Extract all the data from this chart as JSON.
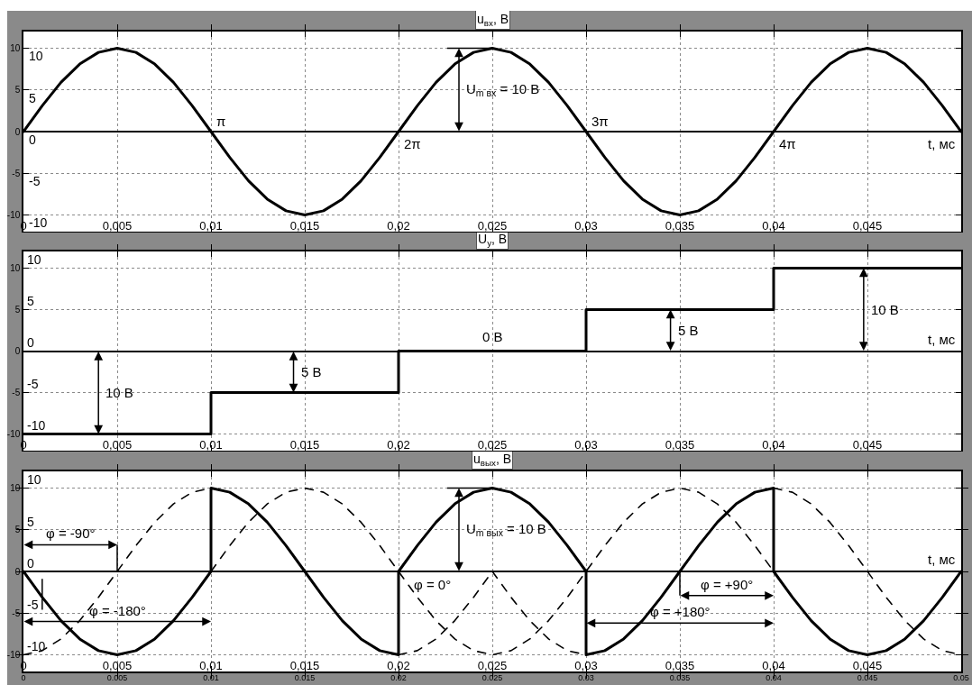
{
  "chart_data": [
    {
      "type": "line",
      "title": "u$_{вх}$, В",
      "xlabel": "t, мс",
      "x": [
        0,
        0.001,
        0.002,
        0.003,
        0.004,
        0.005,
        0.006,
        0.007,
        0.008,
        0.009,
        0.01,
        0.011,
        0.012,
        0.013,
        0.014,
        0.015,
        0.016,
        0.017,
        0.018,
        0.019,
        0.02,
        0.021,
        0.022,
        0.023,
        0.024,
        0.025,
        0.026,
        0.027,
        0.028,
        0.029,
        0.03,
        0.031,
        0.032,
        0.033,
        0.034,
        0.035,
        0.036,
        0.037,
        0.038,
        0.039,
        0.04,
        0.041,
        0.042,
        0.043,
        0.044,
        0.045,
        0.046,
        0.047,
        0.048,
        0.049,
        0.05
      ],
      "series": [
        {
          "color": "#000000",
          "values": [
            0,
            3.1,
            5.9,
            8.1,
            9.5,
            10,
            9.5,
            8.1,
            5.9,
            3.1,
            0,
            -3.1,
            -5.9,
            -8.1,
            -9.5,
            -10,
            -9.5,
            -8.1,
            -5.9,
            -3.1,
            0,
            3.1,
            5.9,
            8.1,
            9.5,
            10,
            9.5,
            8.1,
            5.9,
            3.1,
            0,
            -3.1,
            -5.9,
            -8.1,
            -9.5,
            -10,
            -9.5,
            -8.1,
            -5.9,
            -3.1,
            0,
            3.1,
            5.9,
            8.1,
            9.5,
            10,
            9.5,
            8.1,
            5.9,
            3.1,
            0
          ]
        }
      ],
      "xlim": [
        0,
        0.05
      ],
      "xticks": [
        {
          "value": 0,
          "label": "0"
        },
        {
          "value": 0.005,
          "label": "0,005"
        },
        {
          "value": 0.01,
          "label": "0,01"
        },
        {
          "value": 0.015,
          "label": "0,015"
        },
        {
          "value": 0.02,
          "label": "0,02"
        },
        {
          "value": 0.025,
          "label": "0,025"
        },
        {
          "value": 0.03,
          "label": "0,03"
        },
        {
          "value": 0.035,
          "label": "0,035"
        },
        {
          "value": 0.04,
          "label": "0,04"
        },
        {
          "value": 0.045,
          "label": "0,045"
        }
      ],
      "ylim": [
        -12,
        12
      ],
      "yticks": [
        -10,
        -5,
        0,
        5,
        10
      ],
      "y2lim": [
        -12,
        12
      ],
      "y2ticks": [
        -10,
        -5,
        0,
        5,
        10
      ],
      "grid": true,
      "annotations": [
        {
          "text": "π",
          "x": 0.01,
          "y": 0
        },
        {
          "text": "2π",
          "x": 0.02,
          "y": 0
        },
        {
          "text": "3π",
          "x": 0.03,
          "y": 0
        },
        {
          "text": "4π",
          "x": 0.04,
          "y": 0
        },
        {
          "text": "U$_{m вх}$ = 10 В",
          "x": 0.025,
          "y": 10
        }
      ]
    },
    {
      "type": "step",
      "title": "U$_{у}$, В",
      "xlabel": "t, мс",
      "x": [
        0,
        0.01,
        0.02,
        0.03,
        0.04,
        0.05
      ],
      "series": [
        {
          "color": "#000000",
          "values": [
            -10,
            -5,
            0,
            5,
            10,
            10
          ]
        }
      ],
      "xlim": [
        0,
        0.05
      ],
      "xticks": [
        {
          "value": 0,
          "label": "0"
        },
        {
          "value": 0.005,
          "label": "0,005"
        },
        {
          "value": 0.01,
          "label": "0,01"
        },
        {
          "value": 0.015,
          "label": "0,015"
        },
        {
          "value": 0.02,
          "label": "0,02"
        },
        {
          "value": 0.025,
          "label": "0,025"
        },
        {
          "value": 0.03,
          "label": "0,03"
        },
        {
          "value": 0.035,
          "label": "0,035"
        },
        {
          "value": 0.04,
          "label": "0,04"
        },
        {
          "value": 0.045,
          "label": "0,045"
        }
      ],
      "ylim": [
        -12,
        12
      ],
      "yticks": [
        -10,
        -5,
        0,
        5,
        10
      ],
      "y2lim": [
        -12,
        12
      ],
      "y2ticks": [
        -10,
        -5,
        0,
        5,
        10
      ],
      "grid": true,
      "annotations": [
        {
          "text": "10 В",
          "x": 0.004,
          "y": -10
        },
        {
          "text": "5 В",
          "x": 0.0144,
          "y": -5
        },
        {
          "text": "0 В",
          "x": 0.025,
          "y": 0
        },
        {
          "text": "5 В",
          "x": 0.0345,
          "y": 5
        },
        {
          "text": "10 В",
          "x": 0.0448,
          "y": 10
        }
      ]
    },
    {
      "type": "line",
      "title": "u$_{вых}$, В",
      "xlabel": "t, мс",
      "series": [
        {
          "color": "#000000",
          "x": [
            0,
            0.001,
            0.002,
            0.003,
            0.004,
            0.005,
            0.006,
            0.007,
            0.008,
            0.009,
            0.01,
            0.01,
            0.011,
            0.012,
            0.013,
            0.014,
            0.015,
            0.016,
            0.017,
            0.018,
            0.019,
            0.02,
            0.02,
            0.021,
            0.022,
            0.023,
            0.024,
            0.025,
            0.026,
            0.027,
            0.028,
            0.029,
            0.03,
            0.03,
            0.031,
            0.032,
            0.033,
            0.034,
            0.035,
            0.036,
            0.037,
            0.038,
            0.039,
            0.04,
            0.04,
            0.041,
            0.042,
            0.043,
            0.044,
            0.045,
            0.046,
            0.047,
            0.048,
            0.049,
            0.05
          ],
          "values": [
            0,
            -3.1,
            -5.9,
            -8.1,
            -9.5,
            -10,
            -9.5,
            -8.1,
            -5.9,
            -3.1,
            0,
            10,
            9.5,
            8.1,
            5.9,
            3.1,
            0,
            -3.1,
            -5.9,
            -8.1,
            -9.5,
            -10,
            0,
            3.1,
            5.9,
            8.1,
            9.5,
            10,
            9.5,
            8.1,
            5.9,
            3.1,
            0,
            -10,
            -9.5,
            -8.1,
            -5.9,
            -3.1,
            0,
            3.1,
            5.9,
            8.1,
            9.5,
            10,
            0,
            -3.1,
            -5.9,
            -8.1,
            -9.5,
            -10,
            -9.5,
            -8.1,
            -5.9,
            -3.1,
            0
          ]
        },
        {
          "color": "#000000",
          "line_style": "dashed",
          "x": [
            0,
            0.001,
            0.002,
            0.003,
            0.004,
            0.005,
            0.006,
            0.007,
            0.008,
            0.009,
            0.01,
            0.015,
            0.02,
            0.021,
            0.022,
            0.023,
            0.024,
            0.025
          ],
          "values": [
            -10,
            -9.5,
            -8.1,
            -5.9,
            -3.1,
            0,
            3.1,
            5.9,
            8.1,
            9.5,
            10,
            null,
            -10,
            -9.5,
            -8.1,
            -5.9,
            -3.1,
            0
          ]
        },
        {
          "color": "#000000",
          "line_style": "dashed",
          "x": [
            0.01,
            0.011,
            0.012,
            0.013,
            0.014,
            0.015,
            0.016,
            0.017,
            0.018,
            0.019,
            0.02,
            0.021,
            0.022,
            0.023,
            0.024,
            0.025,
            0.026,
            0.027,
            0.028,
            0.029,
            0.03,
            0.031,
            0.032,
            0.033,
            0.034,
            0.035,
            0.036,
            0.037,
            0.038,
            0.039,
            0.04
          ],
          "values": [
            0,
            3.1,
            5.9,
            8.1,
            9.5,
            10,
            9.5,
            8.1,
            5.9,
            3.1,
            0,
            -3.1,
            -5.9,
            -8.1,
            -9.5,
            -10,
            -9.5,
            -8.1,
            -5.9,
            -3.1,
            0,
            3.1,
            5.9,
            8.1,
            9.5,
            10,
            9.5,
            8.1,
            5.9,
            3.1,
            0
          ]
        },
        {
          "color": "#000000",
          "line_style": "dashed",
          "x": [
            0.025,
            0.026,
            0.027,
            0.028,
            0.029,
            0.03,
            0.035,
            0.04,
            0.041,
            0.042,
            0.043,
            0.044,
            0.045,
            0.046,
            0.047,
            0.048,
            0.049,
            0.05
          ],
          "values": [
            0,
            -3.1,
            -5.9,
            -8.1,
            -9.5,
            -10,
            null,
            10,
            9.5,
            8.1,
            5.9,
            3.1,
            0,
            -3.1,
            -5.9,
            -8.1,
            -9.5,
            -10
          ]
        }
      ],
      "xlim": [
        0,
        0.05
      ],
      "xticks": [
        {
          "value": 0,
          "label": "0"
        },
        {
          "value": 0.005,
          "label": "0,005"
        },
        {
          "value": 0.01,
          "label": "0,01"
        },
        {
          "value": 0.015,
          "label": "0,015"
        },
        {
          "value": 0.02,
          "label": "0,02"
        },
        {
          "value": 0.025,
          "label": "0,025"
        },
        {
          "value": 0.03,
          "label": "0,03"
        },
        {
          "value": 0.035,
          "label": "0,035"
        },
        {
          "value": 0.04,
          "label": "0,04"
        },
        {
          "value": 0.045,
          "label": "0,045"
        }
      ],
      "x2lim": [
        0,
        0.05
      ],
      "x2ticks": [
        0,
        0.005,
        0.01,
        0.015,
        0.02,
        0.025,
        0.03,
        0.035,
        0.04,
        0.045,
        0.05
      ],
      "ylim": [
        -12,
        12
      ],
      "yticks": [
        -10,
        -5,
        0,
        5,
        10
      ],
      "y2lim": [
        -12,
        12
      ],
      "y2ticks": [
        -10,
        -5,
        0,
        5,
        10
      ],
      "grid": true,
      "annotations": [
        "φ = -90°",
        "φ = -180°",
        "φ = 0°",
        {
          "text": "U$_{m вых}$ = 10 В",
          "x": 0.025,
          "y": 10
        },
        "φ = +90°",
        "φ = +180°"
      ]
    }
  ]
}
